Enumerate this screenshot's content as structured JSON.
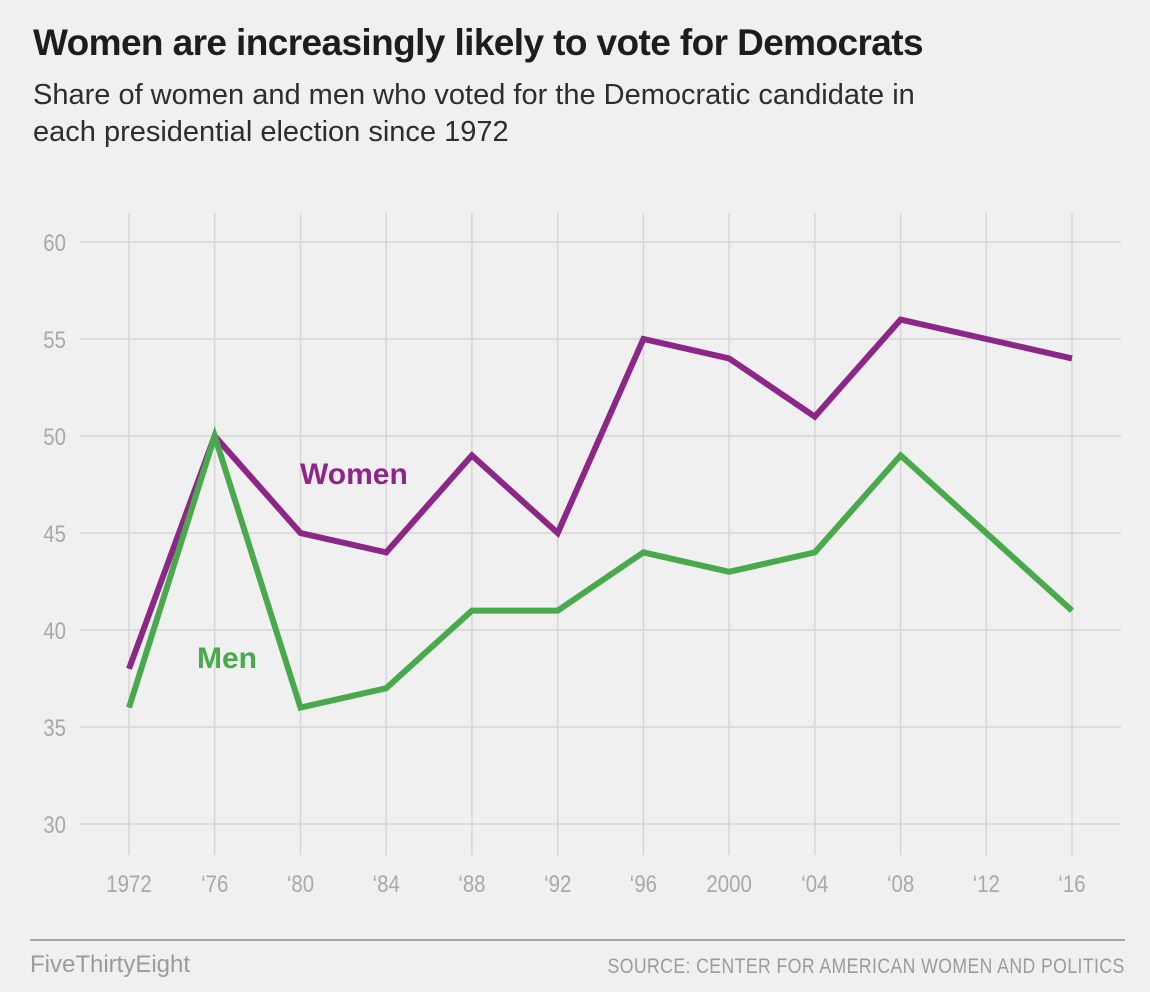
{
  "header": {
    "title": "Women are increasingly likely to vote for Democrats",
    "subtitle": "Share of women and men who voted for the Democratic candidate in each presidential election since 1972"
  },
  "chart_data": {
    "type": "line",
    "title": "Women are increasingly likely to vote for Democrats",
    "subtitle": "Share of women and men who voted for the Democratic candidate in each presidential election since 1972",
    "unit": "percent",
    "x": [
      1972,
      1976,
      1980,
      1984,
      1988,
      1992,
      1996,
      2000,
      2004,
      2008,
      2012,
      2016
    ],
    "x_tick_labels": [
      "1972",
      "‘76",
      "‘80",
      "‘84",
      "‘88",
      "‘92",
      "‘96",
      "2000",
      "‘04",
      "‘08",
      "‘12",
      "‘16"
    ],
    "y_ticks": [
      30,
      35,
      40,
      45,
      50,
      55,
      60
    ],
    "ylim": [
      28,
      62
    ],
    "grid": true,
    "legend": "inline-labels",
    "series": [
      {
        "name": "Women",
        "color": "#8c2787",
        "values": [
          38,
          50,
          45,
          44,
          49,
          45,
          55,
          54,
          51,
          56,
          55,
          54
        ]
      },
      {
        "name": "Men",
        "color": "#4aa94c",
        "values": [
          36,
          50,
          36,
          37,
          41,
          41,
          44,
          43,
          44,
          49,
          45,
          41
        ]
      }
    ]
  },
  "colors": {
    "background": "#f0f0f0",
    "gridline": "#d5d5d5",
    "tick_label": "#a8a8a8",
    "title_text": "#1d1d1d",
    "subtitle_text": "#2d2d2d",
    "footer_text": "#9b9b9b",
    "footer_rule": "#a6a6a6",
    "women_line": "#8c2787",
    "men_line": "#4aa94c"
  },
  "footer": {
    "brand": "FiveThirtyEight",
    "source": "SOURCE: CENTER FOR AMERICAN WOMEN AND POLITICS"
  }
}
